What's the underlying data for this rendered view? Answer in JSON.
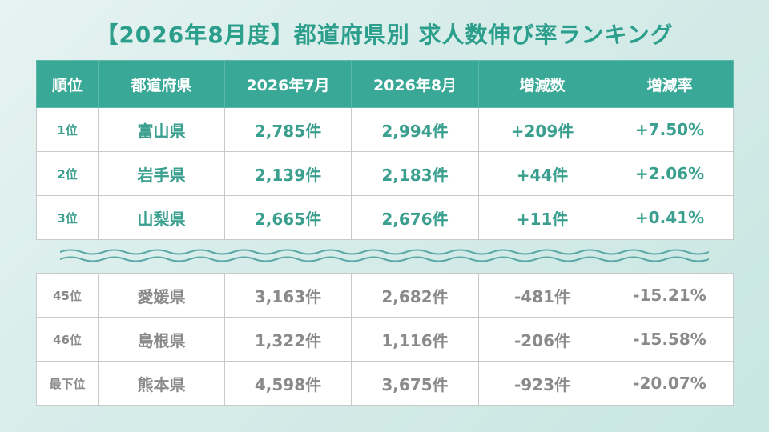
{
  "title": "【2026年8月度】都道府県別 求人数伸び率ランキング",
  "headers": [
    "順位",
    "都道府県",
    "2026年7月",
    "2026年8月",
    "増減数",
    "増減率"
  ],
  "top_rows": [
    [
      "1位",
      "富山県",
      "2,785件",
      "2,994件",
      "+209件",
      "+7.50%"
    ],
    [
      "2位",
      "岩手県",
      "2,139件",
      "2,183件",
      "+44件",
      "+2.06%"
    ],
    [
      "3位",
      "山梨県",
      "2,665件",
      "2,676件",
      "+11件",
      "+0.41%"
    ]
  ],
  "bottom_rows": [
    [
      "45位",
      "愛媛県",
      "3,163件",
      "2,682件",
      "-481件",
      "-15.21%"
    ],
    [
      "46位",
      "島根県",
      "1,322件",
      "1,116件",
      "-206件",
      "-15.58%"
    ],
    [
      "最下位",
      "熊本県",
      "4,598件",
      "3,675件",
      "-923件",
      "-20.07%"
    ]
  ],
  "colors": {
    "accent": "#3aa897",
    "positive_text": "#3a9f8e",
    "negative_text": "#8a8a8a",
    "wave": "#5aa8a8"
  }
}
